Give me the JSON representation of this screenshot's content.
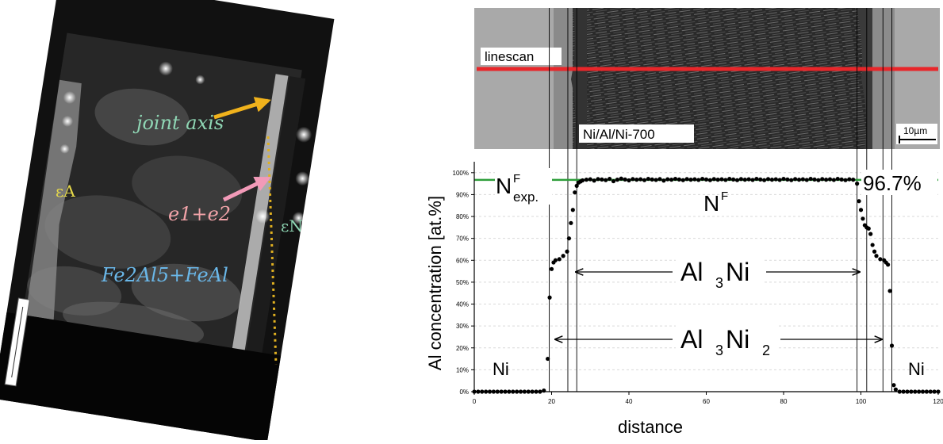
{
  "left_panel": {
    "label_joint_axis": "joint axis",
    "label_e1e2": "e1+e2",
    "label_phases": "Fe2Al5+FeAl",
    "label_eps_a": "εA",
    "label_eps_n": "εN",
    "colors": {
      "joint_axis": "#8fd6b4",
      "e1e2": "#f2a3a8",
      "phases": "#6ab7e8",
      "eps": "#e6d94a",
      "arrow_yellow": "#f0b21c",
      "arrow_pink": "#f29ab8",
      "dotted_line": "#e0b020"
    }
  },
  "micrograph": {
    "linescan_label": "linescan",
    "sample_label": "Ni/Al/Ni-700",
    "scale_label": "10µm",
    "linescan_color": "#e8262a"
  },
  "chart_data": {
    "type": "scatter",
    "xlabel": "distance",
    "ylabel": "Al concentration [at.%]",
    "xlim": [
      0,
      120
    ],
    "ylim": [
      0,
      105
    ],
    "x_ticks": [
      "0",
      "20",
      "40",
      "60",
      "80",
      "100",
      "120"
    ],
    "y_ticks": [
      "0%",
      "10%",
      "20%",
      "30%",
      "40%",
      "50%",
      "60%",
      "70%",
      "80%",
      "90%",
      "100%"
    ],
    "reference_line": {
      "y": 96.7,
      "label": "96.7%",
      "color": "#2e9e3a"
    },
    "vertical_lines_x": [
      19.4,
      24.2,
      26.5,
      99.0,
      101.5,
      105.7,
      108.0
    ],
    "annotations": {
      "nf_exp_main": "N",
      "nf_exp_sup": "F",
      "nf_exp_sub": "exp.",
      "nf_main": "N",
      "nf_sup": "F",
      "al3ni_a": "Al",
      "al3ni_b": "3",
      "al3ni_c": "Ni",
      "al3ni2_a": "Al",
      "al3ni2_b": "3",
      "al3ni2_c": "Ni",
      "al3ni2_d": "2",
      "ni_left": "Ni",
      "ni_right": "Ni"
    },
    "points": [
      [
        0,
        0
      ],
      [
        1,
        0
      ],
      [
        2,
        0
      ],
      [
        3,
        0
      ],
      [
        4,
        0
      ],
      [
        5,
        0
      ],
      [
        6,
        0
      ],
      [
        7,
        0
      ],
      [
        8,
        0
      ],
      [
        9,
        0
      ],
      [
        10,
        0
      ],
      [
        11,
        0
      ],
      [
        12,
        0
      ],
      [
        13,
        0
      ],
      [
        14,
        0
      ],
      [
        15,
        0
      ],
      [
        16,
        0
      ],
      [
        17,
        0
      ],
      [
        18,
        0.5
      ],
      [
        19.0,
        15
      ],
      [
        19.5,
        43
      ],
      [
        20.0,
        56
      ],
      [
        20.5,
        59
      ],
      [
        21.0,
        60
      ],
      [
        22.0,
        60.5
      ],
      [
        23.0,
        62
      ],
      [
        24.0,
        64
      ],
      [
        24.5,
        70
      ],
      [
        25.0,
        77
      ],
      [
        25.5,
        83
      ],
      [
        26.0,
        91
      ],
      [
        26.5,
        94
      ],
      [
        27.0,
        95.5
      ],
      [
        27.5,
        96
      ],
      [
        28,
        96.5
      ],
      [
        29,
        96.8
      ],
      [
        30,
        97
      ],
      [
        31,
        96.4
      ],
      [
        32,
        97.1
      ],
      [
        33,
        96.9
      ],
      [
        34,
        96.6
      ],
      [
        35,
        97.2
      ],
      [
        36,
        96.1
      ],
      [
        37,
        96.8
      ],
      [
        38,
        97.3
      ],
      [
        39,
        96.9
      ],
      [
        40,
        96.5
      ],
      [
        41,
        97.1
      ],
      [
        42,
        96.8
      ],
      [
        43,
        97
      ],
      [
        44,
        96.6
      ],
      [
        45,
        97.2
      ],
      [
        46,
        96.9
      ],
      [
        47,
        96.7
      ],
      [
        48,
        97.1
      ],
      [
        49,
        96.4
      ],
      [
        50,
        97
      ],
      [
        51,
        96.8
      ],
      [
        52,
        97.2
      ],
      [
        53,
        96.9
      ],
      [
        54,
        96.6
      ],
      [
        55,
        97.1
      ],
      [
        56,
        96.8
      ],
      [
        57,
        97
      ],
      [
        58,
        96.7
      ],
      [
        59,
        97.2
      ],
      [
        60,
        96.9
      ],
      [
        61,
        96.6
      ],
      [
        62,
        97.1
      ],
      [
        63,
        96.8
      ],
      [
        64,
        97
      ],
      [
        65,
        96.7
      ],
      [
        66,
        97.2
      ],
      [
        67,
        96.9
      ],
      [
        68,
        96.6
      ],
      [
        69,
        97.1
      ],
      [
        70,
        96.8
      ],
      [
        71,
        97
      ],
      [
        72,
        96.7
      ],
      [
        73,
        97.2
      ],
      [
        74,
        96.9
      ],
      [
        75,
        96.6
      ],
      [
        76,
        97.1
      ],
      [
        77,
        96.8
      ],
      [
        78,
        97
      ],
      [
        79,
        96.7
      ],
      [
        80,
        97.2
      ],
      [
        81,
        96.9
      ],
      [
        82,
        96.6
      ],
      [
        83,
        97.1
      ],
      [
        84,
        96.8
      ],
      [
        85,
        97
      ],
      [
        86,
        96.7
      ],
      [
        87,
        97.2
      ],
      [
        88,
        96.9
      ],
      [
        89,
        96.6
      ],
      [
        90,
        97.1
      ],
      [
        91,
        96.8
      ],
      [
        92,
        97
      ],
      [
        93,
        96.7
      ],
      [
        94,
        97.2
      ],
      [
        95,
        96.9
      ],
      [
        96,
        96.6
      ],
      [
        97,
        97
      ],
      [
        98,
        96.8
      ],
      [
        99.0,
        95
      ],
      [
        99.5,
        87
      ],
      [
        100.0,
        83
      ],
      [
        100.5,
        79
      ],
      [
        101.0,
        76
      ],
      [
        101.5,
        75
      ],
      [
        102.0,
        74.5
      ],
      [
        102.5,
        72
      ],
      [
        103.0,
        67
      ],
      [
        103.5,
        64
      ],
      [
        104.0,
        62
      ],
      [
        105.0,
        60.5
      ],
      [
        106.0,
        60
      ],
      [
        106.5,
        59
      ],
      [
        107.0,
        58
      ],
      [
        107.5,
        46
      ],
      [
        108.0,
        21
      ],
      [
        108.5,
        3
      ],
      [
        109,
        1
      ],
      [
        110,
        0
      ],
      [
        111,
        0
      ],
      [
        112,
        0
      ],
      [
        113,
        0
      ],
      [
        114,
        0
      ],
      [
        115,
        0
      ],
      [
        116,
        0
      ],
      [
        117,
        0
      ],
      [
        118,
        0
      ],
      [
        119,
        0
      ],
      [
        120,
        0
      ]
    ]
  }
}
